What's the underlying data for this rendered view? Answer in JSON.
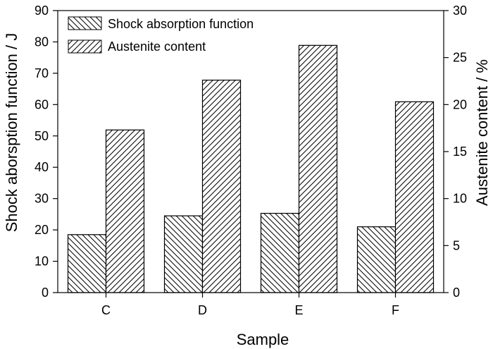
{
  "chart_data": {
    "type": "bar",
    "categories": [
      "C",
      "D",
      "E",
      "F"
    ],
    "xlabel": "Sample",
    "ylabel_left": "Shock aborsption function / J",
    "ylabel_right": "Austenite content / %",
    "ylim_left": [
      0,
      90
    ],
    "ylim_right": [
      0,
      30
    ],
    "yticks_left": [
      0,
      10,
      20,
      30,
      40,
      50,
      60,
      70,
      80,
      90
    ],
    "yticks_right": [
      0,
      5,
      10,
      15,
      20,
      25,
      30
    ],
    "legend_position": "top-left",
    "grid": false,
    "series": [
      {
        "name": "Shock absorption function",
        "axis": "left",
        "hatch": "backslash",
        "values": [
          18.5,
          24.5,
          25.3,
          21.0
        ]
      },
      {
        "name": "Austenite content",
        "axis": "right",
        "hatch": "slash",
        "values": [
          17.3,
          22.6,
          26.3,
          20.3
        ]
      }
    ]
  }
}
